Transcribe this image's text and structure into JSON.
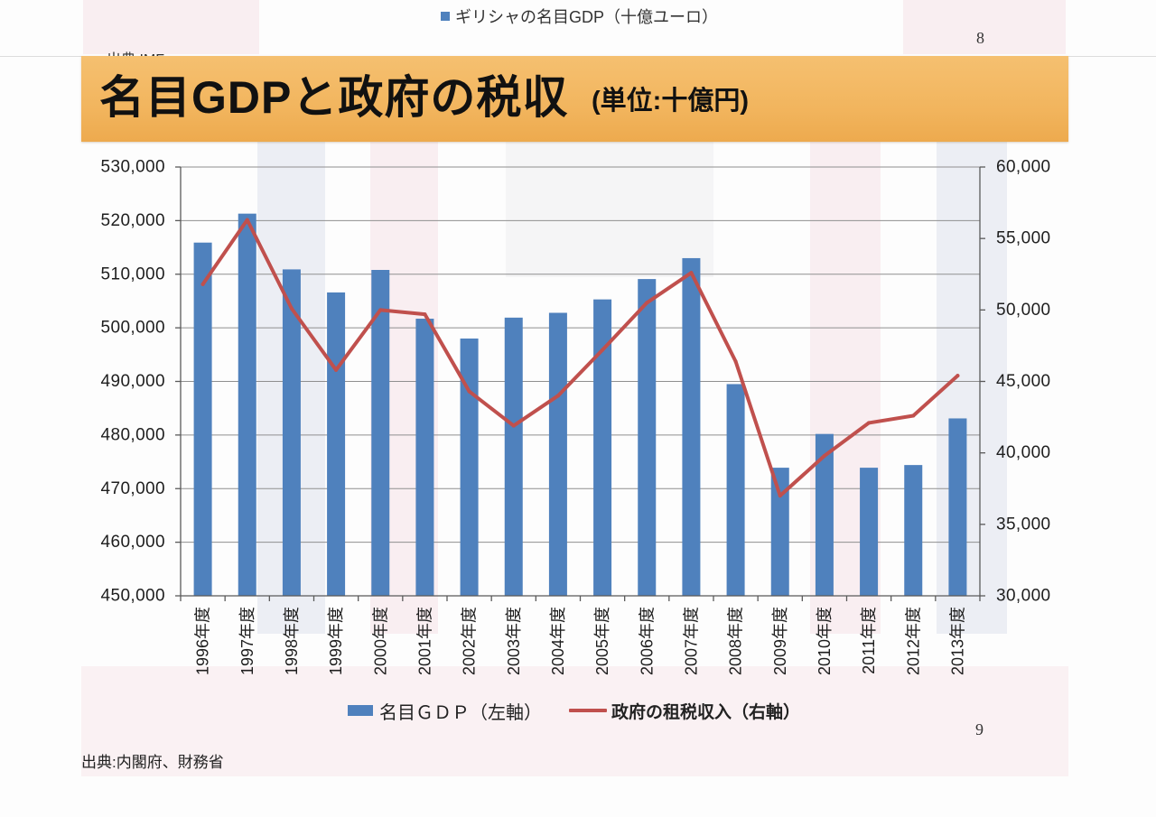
{
  "ghost": {
    "legend_label": "ギリシャの名目GDP（十億ユーロ）",
    "source": "出典:IMF",
    "page_number": "8"
  },
  "title": {
    "main": "名目GDPと政府の税収",
    "unit": "(単位:十億円)"
  },
  "page_number": "9",
  "source": "出典:内閣府、財務省",
  "colors": {
    "title_band": "#F2B55E",
    "ghost_swatch": "#4F81BD"
  },
  "chart_data": {
    "type": "bar",
    "categories": [
      "1996年度",
      "1997年度",
      "1998年度",
      "1999年度",
      "2000年度",
      "2001年度",
      "2002年度",
      "2003年度",
      "2004年度",
      "2005年度",
      "2006年度",
      "2007年度",
      "2008年度",
      "2009年度",
      "2010年度",
      "2011年度",
      "2012年度",
      "2013年度"
    ],
    "series": [
      {
        "name": "名目ＧＤＰ（左軸）",
        "type": "bar",
        "axis": "left",
        "color": "#4F81BD",
        "values": [
          515900,
          521300,
          510900,
          506600,
          510800,
          501700,
          498000,
          501900,
          502800,
          505300,
          509100,
          513000,
          489500,
          473900,
          480200,
          473900,
          474400,
          483100
        ]
      },
      {
        "name": "政府の租税収入（右軸）",
        "type": "line",
        "axis": "right",
        "color": "#C0504D",
        "values": [
          51800,
          56300,
          50100,
          45800,
          50000,
          49700,
          44300,
          41900,
          44000,
          47200,
          50500,
          52600,
          46400,
          37000,
          39800,
          42100,
          42600,
          45400
        ]
      }
    ],
    "y_left": {
      "ylim": [
        450000,
        530000
      ],
      "tick_labels": [
        "450,000",
        "460,000",
        "470,000",
        "480,000",
        "490,000",
        "500,000",
        "510,000",
        "520,000",
        "530,000"
      ]
    },
    "y_right": {
      "ylim": [
        30000,
        60000
      ],
      "tick_labels": [
        "30,000",
        "35,000",
        "40,000",
        "45,000",
        "50,000",
        "55,000",
        "60,000"
      ]
    },
    "grid": true,
    "legend_position": "bottom"
  }
}
